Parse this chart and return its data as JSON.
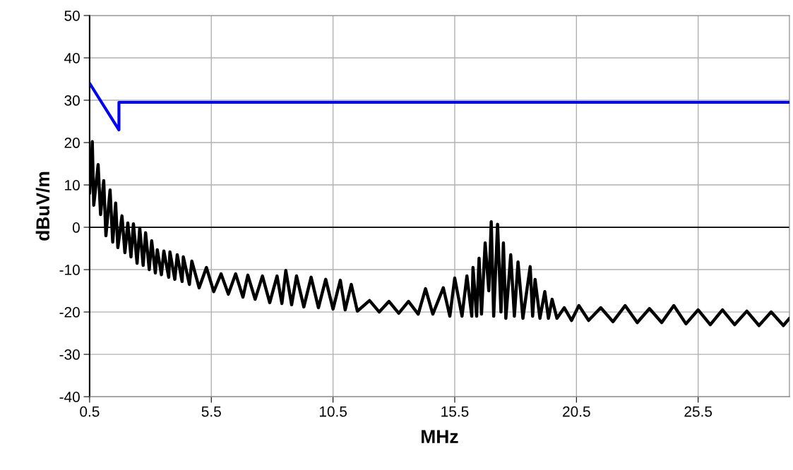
{
  "chart_data": {
    "type": "line",
    "xlabel": "MHz",
    "ylabel": "dBuV/m",
    "xlim": [
      0.5,
      29.25
    ],
    "xticks": [
      0.5,
      5.5,
      10.5,
      15.5,
      20.5,
      25.5
    ],
    "ylim": [
      -40,
      50
    ],
    "yticks": [
      -40,
      -30,
      -20,
      -10,
      0,
      10,
      20,
      30,
      40,
      50
    ],
    "grid": true,
    "marker": "none",
    "line_style": "solid",
    "ref_lines": [
      {
        "axis": "y",
        "value": 0,
        "color": "#000000"
      }
    ],
    "series": [
      {
        "color": "#000000",
        "x": [
          0.5,
          0.55,
          0.61,
          0.67,
          0.85,
          0.95,
          1.08,
          1.17,
          1.34,
          1.45,
          1.57,
          1.66,
          1.83,
          1.95,
          2.07,
          2.2,
          2.3,
          2.45,
          2.56,
          2.7,
          2.8,
          2.95,
          3.05,
          3.2,
          3.28,
          3.45,
          3.55,
          3.75,
          3.8,
          4.0,
          4.1,
          4.3,
          4.35,
          4.6,
          4.7,
          5.0,
          5.3,
          5.6,
          5.9,
          6.2,
          6.5,
          6.8,
          7.0,
          7.3,
          7.6,
          7.9,
          8.2,
          8.4,
          8.56,
          8.8,
          9.0,
          9.3,
          9.6,
          9.9,
          10.2,
          10.5,
          10.8,
          11.0,
          11.25,
          11.5,
          12.0,
          12.4,
          12.8,
          13.2,
          13.6,
          14.0,
          14.3,
          14.6,
          15.03,
          15.3,
          15.5,
          15.8,
          16.0,
          16.2,
          16.25,
          16.4,
          16.5,
          16.6,
          16.75,
          16.9,
          17.0,
          17.1,
          17.26,
          17.4,
          17.5,
          17.6,
          17.8,
          17.95,
          18.1,
          18.3,
          18.6,
          18.7,
          18.8,
          19.0,
          19.2,
          19.35,
          19.5,
          19.7,
          20.0,
          20.3,
          20.6,
          21.0,
          21.5,
          22.0,
          22.5,
          23.0,
          23.5,
          24.0,
          24.5,
          25.0,
          25.5,
          26.0,
          26.5,
          27.0,
          27.5,
          28.0,
          28.5,
          29.0,
          29.25
        ],
        "values": [
          8,
          12,
          20.2,
          5.2,
          14.8,
          3,
          11,
          -2,
          8.8,
          -3.5,
          5.7,
          -4.8,
          2.7,
          -6,
          1,
          -7,
          0.8,
          -8.5,
          -0.2,
          -9,
          -1.3,
          -10,
          -3.2,
          -10.8,
          -5.3,
          -11.2,
          -5.6,
          -11.8,
          -5.8,
          -12.3,
          -6.5,
          -12.8,
          -7,
          -13.5,
          -8,
          -14.3,
          -9.5,
          -15.2,
          -11,
          -15.8,
          -11,
          -16.5,
          -11.3,
          -17,
          -11.5,
          -17.8,
          -11.5,
          -18,
          -10.2,
          -18.3,
          -11.5,
          -18.8,
          -11.8,
          -19,
          -12.3,
          -19.3,
          -12.5,
          -19.5,
          -13.5,
          -19.8,
          -17.3,
          -20,
          -17.5,
          -20.3,
          -17.5,
          -20.5,
          -14.5,
          -20.5,
          -14.3,
          -21,
          -12,
          -21,
          -11.5,
          -21,
          -9.5,
          -21,
          -7.3,
          -20.5,
          -3.7,
          -15,
          1.3,
          -21,
          0.7,
          -20,
          -3.7,
          -21.5,
          -6.5,
          -21,
          -8.2,
          -21.5,
          -9.3,
          -21,
          -12.3,
          -21.5,
          -15.2,
          -21.5,
          -17,
          -21.5,
          -19,
          -22,
          -18.5,
          -22,
          -19,
          -22.3,
          -18.5,
          -22.5,
          -19.2,
          -22.5,
          -18.5,
          -22.8,
          -19.5,
          -23,
          -19.5,
          -23,
          -19.8,
          -23.2,
          -20,
          -23.2,
          -21.5
        ]
      },
      {
        "color": "#0000ff",
        "x": [
          0.5,
          1.705,
          1.705,
          29.25
        ],
        "values": [
          34,
          23,
          29.5,
          29.5
        ]
      }
    ]
  }
}
